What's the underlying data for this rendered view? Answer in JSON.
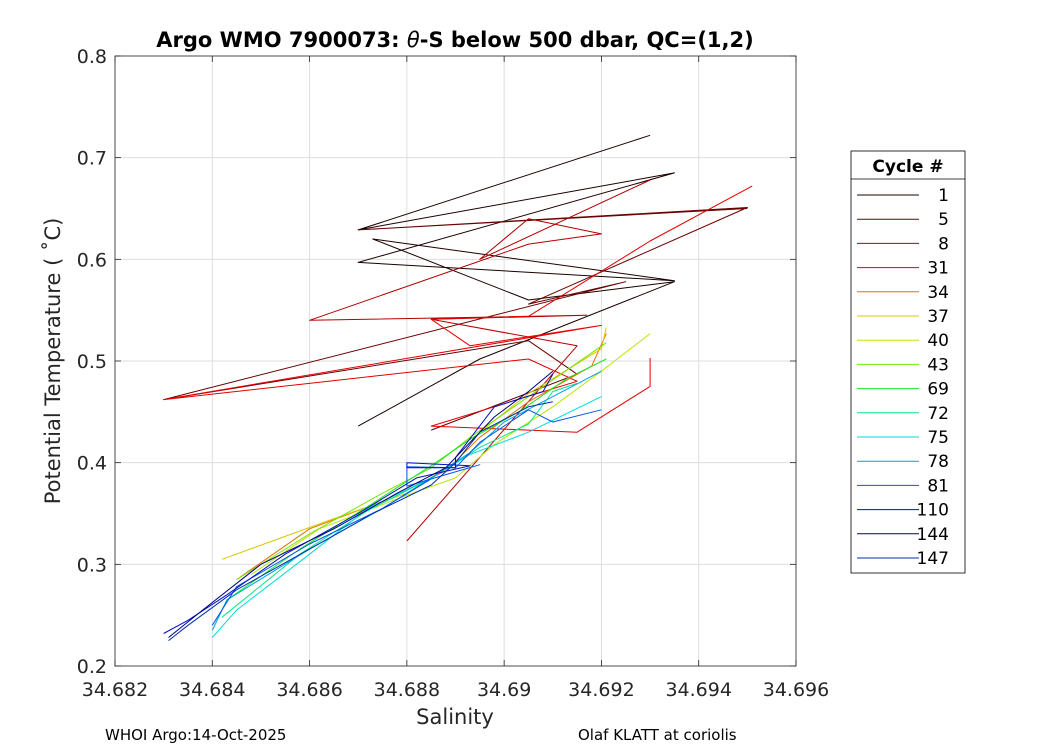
{
  "footer": {
    "left": "WHOI Argo:14-Oct-2025",
    "right": "Olaf KLATT at coriolis"
  },
  "chart_data": {
    "type": "line",
    "title_prefix": "Argo WMO 7900073: ",
    "title_theta": "θ",
    "title_suffix": "-S below 500 dbar,  QC=(1,2)",
    "xlabel": "Salinity",
    "ylabel": "Potential Temperature ( ˚C)",
    "xlim": [
      34.682,
      34.696
    ],
    "ylim": [
      0.2,
      0.8
    ],
    "xticks": [
      34.682,
      34.684,
      34.686,
      34.688,
      34.69,
      34.692,
      34.694,
      34.696
    ],
    "xtick_labels": [
      "34.682",
      "34.684",
      "34.686",
      "34.688",
      "34.69",
      "34.692",
      "34.694",
      "34.696"
    ],
    "yticks": [
      0.2,
      0.3,
      0.4,
      0.5,
      0.6,
      0.7,
      0.8
    ],
    "ytick_labels": [
      "0.2",
      "0.3",
      "0.4",
      "0.5",
      "0.6",
      "0.7",
      "0.8"
    ],
    "grid": true,
    "legend_title": "Cycle #",
    "legend_position": "outside-right",
    "series": [
      {
        "name": "1",
        "color": "#1a0000",
        "x": [
          34.693,
          34.687,
          34.6935,
          34.687,
          34.6935,
          34.6873,
          34.6905,
          34.6935,
          34.6895,
          34.687
        ],
        "y": [
          0.722,
          0.629,
          0.685,
          0.597,
          0.579,
          0.62,
          0.56,
          0.578,
          0.502,
          0.436
        ]
      },
      {
        "name": "5",
        "color": "#6b0000",
        "x": [
          34.695,
          34.687,
          34.695,
          34.6905,
          34.6925,
          34.683,
          34.6905,
          34.6915,
          34.6885
        ],
        "y": [
          0.65,
          0.629,
          0.651,
          0.556,
          0.578,
          0.462,
          0.52,
          0.487,
          0.432
        ]
      },
      {
        "name": "8",
        "color": "#b50000",
        "x": [
          34.693,
          34.6895,
          34.6905,
          34.692,
          34.6905,
          34.686,
          34.6917,
          34.6885,
          34.6915,
          34.688
        ],
        "y": [
          0.678,
          0.6,
          0.64,
          0.625,
          0.615,
          0.54,
          0.545,
          0.541,
          0.515,
          0.323
        ]
      },
      {
        "name": "31",
        "color": "#e60000",
        "x": [
          34.6951,
          34.693,
          34.6905,
          34.6885,
          34.6893,
          34.692,
          34.683,
          34.6905,
          34.6915,
          34.6885,
          34.6915,
          34.693,
          34.693
        ],
        "y": [
          0.672,
          0.618,
          0.544,
          0.541,
          0.515,
          0.535,
          0.462,
          0.502,
          0.48,
          0.436,
          0.43,
          0.475,
          0.503
        ]
      },
      {
        "name": "34",
        "color": "#e66d00",
        "x": [
          34.6921,
          34.6918,
          34.6905,
          34.6895,
          34.6888,
          34.6875,
          34.686,
          34.6845
        ],
        "y": [
          0.527,
          0.495,
          0.46,
          0.425,
          0.392,
          0.362,
          0.335,
          0.285
        ]
      },
      {
        "name": "37",
        "color": "#d9c800",
        "x": [
          34.6921,
          34.692,
          34.6905,
          34.6895,
          34.6888,
          34.688,
          34.6865,
          34.6842
        ],
        "y": [
          0.533,
          0.512,
          0.468,
          0.43,
          0.395,
          0.37,
          0.345,
          0.305
        ]
      },
      {
        "name": "40",
        "color": "#bde600",
        "x": [
          34.693,
          34.692,
          34.691,
          34.6898,
          34.689,
          34.688,
          34.6862,
          34.6848
        ],
        "y": [
          0.527,
          0.49,
          0.455,
          0.418,
          0.385,
          0.368,
          0.335,
          0.29
        ]
      },
      {
        "name": "43",
        "color": "#78e600",
        "x": [
          34.6921,
          34.6912,
          34.6902,
          34.6893,
          34.6885,
          34.6875,
          34.686,
          34.6845
        ],
        "y": [
          0.518,
          0.488,
          0.455,
          0.425,
          0.395,
          0.37,
          0.33,
          0.285
        ]
      },
      {
        "name": "69",
        "color": "#1ee61e",
        "x": [
          34.6921,
          34.6913,
          34.6903,
          34.6893,
          34.6885,
          34.6873,
          34.6858,
          34.6843
        ],
        "y": [
          0.502,
          0.483,
          0.45,
          0.423,
          0.397,
          0.36,
          0.315,
          0.265
        ]
      },
      {
        "name": "72",
        "color": "#00e68a",
        "x": [
          34.6915,
          34.691,
          34.6905,
          34.6895,
          34.6885,
          34.6872,
          34.6858,
          34.6842
        ],
        "y": [
          0.478,
          0.47,
          0.438,
          0.415,
          0.385,
          0.353,
          0.31,
          0.248
        ]
      },
      {
        "name": "75",
        "color": "#00d9d9",
        "x": [
          34.692,
          34.6905,
          34.6893,
          34.6885,
          34.6872,
          34.686,
          34.6845,
          34.684
        ],
        "y": [
          0.465,
          0.43,
          0.408,
          0.385,
          0.355,
          0.31,
          0.255,
          0.228
        ]
      },
      {
        "name": "78",
        "color": "#00a3e6",
        "x": [
          34.692,
          34.691,
          34.69,
          34.6893,
          34.6885,
          34.6875,
          34.686,
          34.6843,
          34.684
        ],
        "y": [
          0.49,
          0.465,
          0.44,
          0.41,
          0.385,
          0.355,
          0.315,
          0.265,
          0.235
        ]
      },
      {
        "name": "81",
        "color": "#0057e6",
        "x": [
          34.692,
          34.691,
          34.6905,
          34.6895,
          34.689,
          34.688,
          34.688,
          34.6895,
          34.6885,
          34.6875,
          34.686,
          34.6845,
          34.684
        ],
        "y": [
          0.452,
          0.44,
          0.452,
          0.42,
          0.395,
          0.396,
          0.377,
          0.398,
          0.384,
          0.355,
          0.32,
          0.278,
          0.24
        ]
      },
      {
        "name": "110",
        "color": "#0010c9",
        "x": [
          34.691,
          34.6908,
          34.6898,
          34.689,
          34.689,
          34.688,
          34.688,
          34.6893,
          34.6882,
          34.687,
          34.6855,
          34.6843,
          34.6835,
          34.683
        ],
        "y": [
          0.487,
          0.47,
          0.455,
          0.405,
          0.395,
          0.395,
          0.4,
          0.397,
          0.385,
          0.35,
          0.31,
          0.27,
          0.245,
          0.232
        ]
      },
      {
        "name": "144",
        "color": "#000080",
        "x": [
          34.691,
          34.6905,
          34.6898,
          34.6893,
          34.6888,
          34.6878,
          34.6865,
          34.685,
          34.6838,
          34.6831
        ],
        "y": [
          0.49,
          0.47,
          0.445,
          0.42,
          0.395,
          0.37,
          0.335,
          0.3,
          0.255,
          0.228
        ]
      },
      {
        "name": "147",
        "color": "#0030b0",
        "x": [
          34.691,
          34.6905,
          34.6895,
          34.689,
          34.6885,
          34.6873,
          34.686,
          34.6845,
          34.6835,
          34.6831
        ],
        "y": [
          0.46,
          0.455,
          0.43,
          0.4,
          0.378,
          0.35,
          0.315,
          0.275,
          0.24,
          0.225
        ]
      }
    ]
  }
}
